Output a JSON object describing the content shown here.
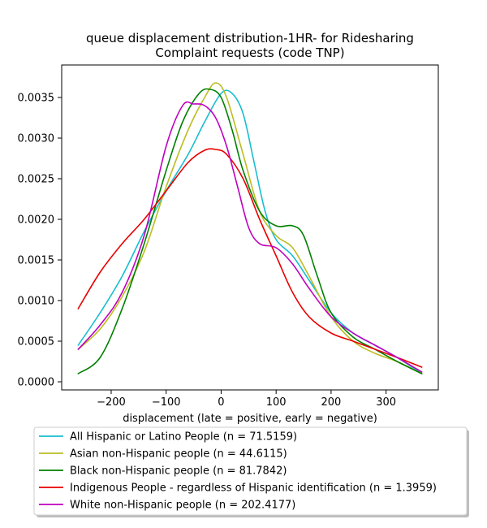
{
  "chart_data": {
    "type": "line",
    "title": "queue displacement distribution-1HR-  for Ridesharing\nComplaint  requests (code TNP)",
    "xlabel": "displacement (late = positive, early = negative)",
    "ylabel": "",
    "xlim": [
      -290,
      395
    ],
    "ylim": [
      -0.0001,
      0.0039
    ],
    "xticks": [
      -200,
      -100,
      0,
      100,
      200,
      300
    ],
    "xtick_labels": [
      "−200",
      "−100",
      "0",
      "100",
      "200",
      "300"
    ],
    "yticks": [
      0.0,
      0.0005,
      0.001,
      0.0015,
      0.002,
      0.0025,
      0.003,
      0.0035
    ],
    "ytick_labels": [
      "0.0000",
      "0.0005",
      "0.0010",
      "0.0015",
      "0.0020",
      "0.0025",
      "0.0030",
      "0.0035"
    ],
    "grid": false,
    "legend": "below-axes",
    "series": [
      {
        "name": "All Hispanic or Latino People (n = 71.5159)",
        "color": "#17becf",
        "x": [
          -260,
          -220,
          -180,
          -140,
          -100,
          -60,
          -30,
          0,
          20,
          40,
          60,
          80,
          100,
          130,
          160,
          200,
          240,
          280,
          320,
          365
        ],
        "y": [
          0.00045,
          0.00085,
          0.0013,
          0.00185,
          0.00235,
          0.0028,
          0.0032,
          0.00355,
          0.00355,
          0.0033,
          0.0027,
          0.0021,
          0.00175,
          0.00155,
          0.00125,
          0.00085,
          0.0006,
          0.00045,
          0.0003,
          0.0001
        ]
      },
      {
        "name": "Asian non-Hispanic people (n = 44.6115)",
        "color": "#bcbd22",
        "x": [
          -260,
          -220,
          -180,
          -140,
          -100,
          -60,
          -30,
          -10,
          10,
          40,
          70,
          100,
          130,
          160,
          200,
          240,
          280,
          320,
          365
        ],
        "y": [
          0.0004,
          0.00065,
          0.00105,
          0.0016,
          0.0024,
          0.0031,
          0.0035,
          0.00368,
          0.0035,
          0.0028,
          0.0021,
          0.0018,
          0.00165,
          0.0013,
          0.0008,
          0.0005,
          0.00035,
          0.00025,
          0.0001
        ]
      },
      {
        "name": "Black non-Hispanic people (n = 81.7842)",
        "color": "#008000",
        "x": [
          -260,
          -220,
          -180,
          -140,
          -100,
          -70,
          -40,
          -20,
          0,
          20,
          40,
          70,
          100,
          130,
          150,
          175,
          200,
          240,
          280,
          320,
          365
        ],
        "y": [
          0.0001,
          0.0003,
          0.0009,
          0.0017,
          0.0026,
          0.0032,
          0.00355,
          0.0036,
          0.0035,
          0.0031,
          0.0026,
          0.0021,
          0.00192,
          0.00192,
          0.0018,
          0.0013,
          0.00085,
          0.00055,
          0.0004,
          0.00025,
          0.0001
        ]
      },
      {
        "name": "Indigenous People - regardless of Hispanic identification (n = 1.3959)",
        "color": "#e80000",
        "x": [
          -260,
          -220,
          -180,
          -140,
          -100,
          -60,
          -30,
          -10,
          10,
          40,
          70,
          100,
          130,
          160,
          200,
          240,
          280,
          320,
          365
        ],
        "y": [
          0.0009,
          0.00135,
          0.0017,
          0.002,
          0.00235,
          0.0027,
          0.00285,
          0.00286,
          0.0028,
          0.0025,
          0.002,
          0.00155,
          0.0011,
          0.0008,
          0.0006,
          0.0005,
          0.0004,
          0.0003,
          0.00018
        ]
      },
      {
        "name": "White non-Hispanic people (n = 202.4177)",
        "color": "#bf00bf",
        "x": [
          -260,
          -220,
          -180,
          -140,
          -100,
          -70,
          -50,
          -30,
          -10,
          10,
          30,
          50,
          70,
          100,
          130,
          160,
          200,
          240,
          280,
          320,
          365
        ],
        "y": [
          0.0004,
          0.0007,
          0.0011,
          0.0018,
          0.0029,
          0.0034,
          0.00342,
          0.0034,
          0.00325,
          0.0029,
          0.0024,
          0.0019,
          0.0017,
          0.00165,
          0.00145,
          0.00115,
          0.0008,
          0.0006,
          0.00045,
          0.0003,
          0.00012
        ]
      }
    ]
  }
}
